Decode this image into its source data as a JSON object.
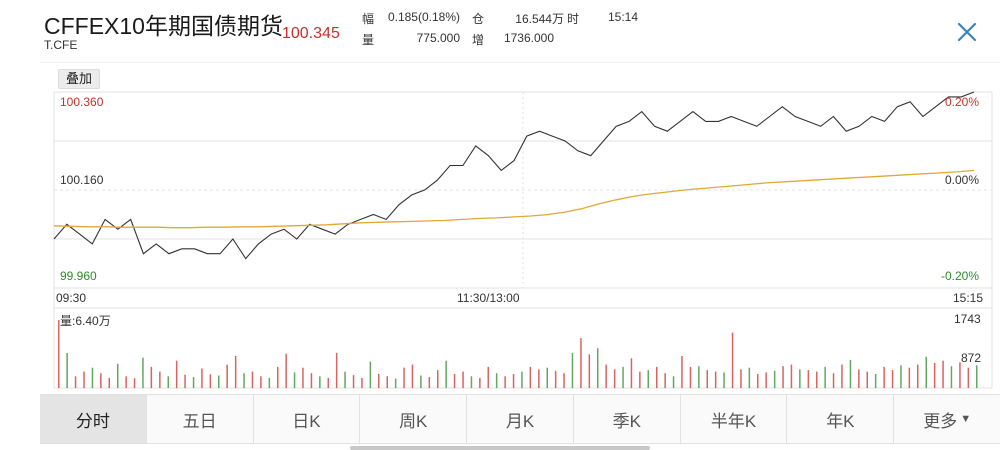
{
  "header": {
    "title": "CFFEX10年期国债期货",
    "symbol": "T.CFE",
    "price": "100.345",
    "stats": {
      "range_label": "幅",
      "range_value": "0.185(0.18%)",
      "position_label": "仓",
      "position_value": "16.544万",
      "time_label": "时",
      "time_value": "15:14",
      "volume_label": "量",
      "volume_value": "775.000",
      "increase_label": "增",
      "increase_value": "1736.000"
    }
  },
  "toolbar": {
    "overlay_label": "叠加",
    "close_icon": "close-icon"
  },
  "colors": {
    "up": "#c9302c",
    "down": "#2e8b2e",
    "price_line": "#333333",
    "avg_line": "#e0a83a",
    "grid": "#e3e3e3"
  },
  "chart_data": {
    "type": "line",
    "price_axis": {
      "top": "100.360",
      "mid": "100.160",
      "bottom": "99.960",
      "ylim": [
        99.96,
        100.36
      ]
    },
    "percent_axis": {
      "top": "0.20%",
      "mid": "0.00%",
      "bottom": "-0.20%"
    },
    "time_labels": {
      "start": "09:30",
      "mid": "11:30/13:00",
      "end": "15:15"
    },
    "price_series": [
      100.06,
      100.09,
      100.07,
      100.05,
      100.1,
      100.08,
      100.1,
      100.03,
      100.05,
      100.03,
      100.04,
      100.04,
      100.03,
      100.03,
      100.06,
      100.02,
      100.05,
      100.07,
      100.08,
      100.06,
      100.09,
      100.08,
      100.07,
      100.09,
      100.1,
      100.11,
      100.1,
      100.13,
      100.15,
      100.16,
      100.18,
      100.21,
      100.21,
      100.25,
      100.23,
      100.2,
      100.22,
      100.27,
      100.28,
      100.27,
      100.26,
      100.24,
      100.23,
      100.26,
      100.29,
      100.3,
      100.32,
      100.29,
      100.28,
      100.3,
      100.32,
      100.3,
      100.3,
      100.31,
      100.3,
      100.29,
      100.31,
      100.33,
      100.31,
      100.3,
      100.29,
      100.31,
      100.28,
      100.29,
      100.31,
      100.3,
      100.33,
      100.34,
      100.31,
      100.33,
      100.35,
      100.35,
      100.36
    ],
    "avg_series": [
      100.087,
      100.086,
      100.085,
      100.085,
      100.084,
      100.084,
      100.084,
      100.083,
      100.083,
      100.084,
      100.084,
      100.085,
      100.085,
      100.086,
      100.087,
      100.088,
      100.089,
      100.091,
      100.093,
      100.094,
      100.095,
      100.096,
      100.097,
      100.098,
      100.1,
      100.102,
      100.103,
      100.105,
      100.107,
      100.11,
      100.115,
      100.122,
      100.132,
      100.14,
      100.147,
      100.152,
      100.156,
      100.16,
      100.163,
      100.166,
      100.169,
      100.172,
      100.175,
      100.177,
      100.179,
      100.181,
      100.183,
      100.185,
      100.187,
      100.189,
      100.191,
      100.193,
      100.195,
      100.197,
      100.2
    ],
    "volume_panel": {
      "label": "量:6.40万",
      "top": "1743",
      "mid": "872",
      "max": 1743
    },
    "volume_series": [
      1740,
      900,
      300,
      420,
      520,
      380,
      260,
      620,
      300,
      250,
      780,
      540,
      420,
      300,
      700,
      340,
      280,
      500,
      350,
      320,
      600,
      820,
      380,
      420,
      300,
      260,
      540,
      880,
      400,
      520,
      380,
      300,
      260,
      900,
      420,
      330,
      260,
      680,
      360,
      300,
      240,
      520,
      600,
      320,
      280,
      460,
      700,
      360,
      420,
      300,
      260,
      540,
      380,
      300,
      360,
      420,
      540,
      480,
      520,
      440,
      380,
      900,
      1280,
      860,
      1020,
      600,
      480,
      540,
      760,
      420,
      460,
      540,
      380,
      300,
      820,
      540,
      560,
      460,
      420,
      400,
      1420,
      480,
      520,
      360,
      400,
      440,
      560,
      600,
      480,
      460,
      420,
      540,
      380,
      600,
      720,
      480,
      420,
      360,
      540,
      460,
      580,
      520,
      600,
      800,
      640,
      700,
      560,
      660,
      520,
      580
    ]
  },
  "tabs": [
    {
      "label": "分时"
    },
    {
      "label": "五日"
    },
    {
      "label": "日K"
    },
    {
      "label": "周K"
    },
    {
      "label": "月K"
    },
    {
      "label": "季K"
    },
    {
      "label": "半年K"
    },
    {
      "label": "年K"
    },
    {
      "label": "更多"
    }
  ]
}
